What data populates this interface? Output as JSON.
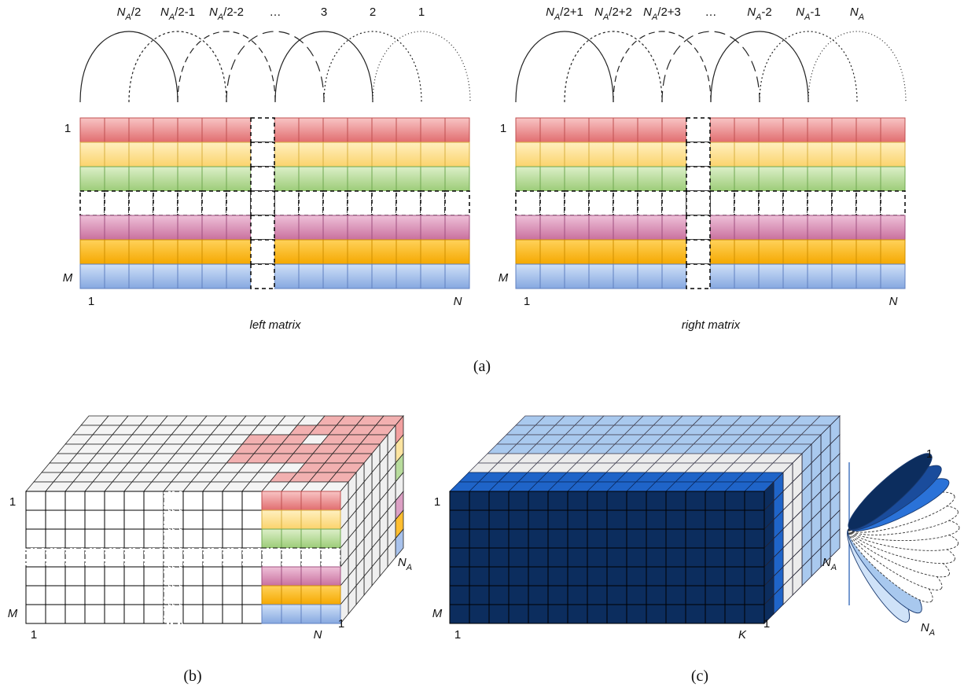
{
  "panel_a": {
    "left": {
      "arc_labels": [
        {
          "n": "N",
          "sub": "A",
          "tail": "/2"
        },
        {
          "n": "N",
          "sub": "A",
          "tail": "/2-1"
        },
        {
          "n": "N",
          "sub": "A",
          "tail": "/2-2"
        },
        "…",
        "3",
        "2",
        "1"
      ],
      "row_first": "1",
      "row_last": "M",
      "col_first": "1",
      "col_last": "N",
      "caption": "left matrix"
    },
    "right": {
      "arc_labels": [
        {
          "n": "N",
          "sub": "A",
          "tail": "/2+1"
        },
        {
          "n": "N",
          "sub": "A",
          "tail": "/2+2"
        },
        {
          "n": "N",
          "sub": "A",
          "tail": "/2+3"
        },
        "…",
        {
          "n": "N",
          "sub": "A",
          "tail": "-2"
        },
        {
          "n": "N",
          "sub": "A",
          "tail": "-1"
        },
        {
          "n": "N",
          "sub": "A"
        }
      ],
      "row_first": "1",
      "row_last": "M",
      "col_first": "1",
      "col_last": "N",
      "caption": "right matrix"
    },
    "caption": "(a)"
  },
  "panel_b": {
    "row_first": "1",
    "row_last": "M",
    "col_first": "1",
    "col_last": "N",
    "depth_first": "1",
    "depth_last": {
      "n": "N",
      "sub": "A"
    },
    "caption": "(b)"
  },
  "panel_c": {
    "row_first": "1",
    "row_last": "M",
    "col_first": "1",
    "col_last": "K",
    "depth_first": "1",
    "depth_last": {
      "n": "N",
      "sub": "A"
    },
    "fan_first": "1",
    "fan_last": {
      "n": "N",
      "sub": "A"
    },
    "caption": "(c)"
  }
}
